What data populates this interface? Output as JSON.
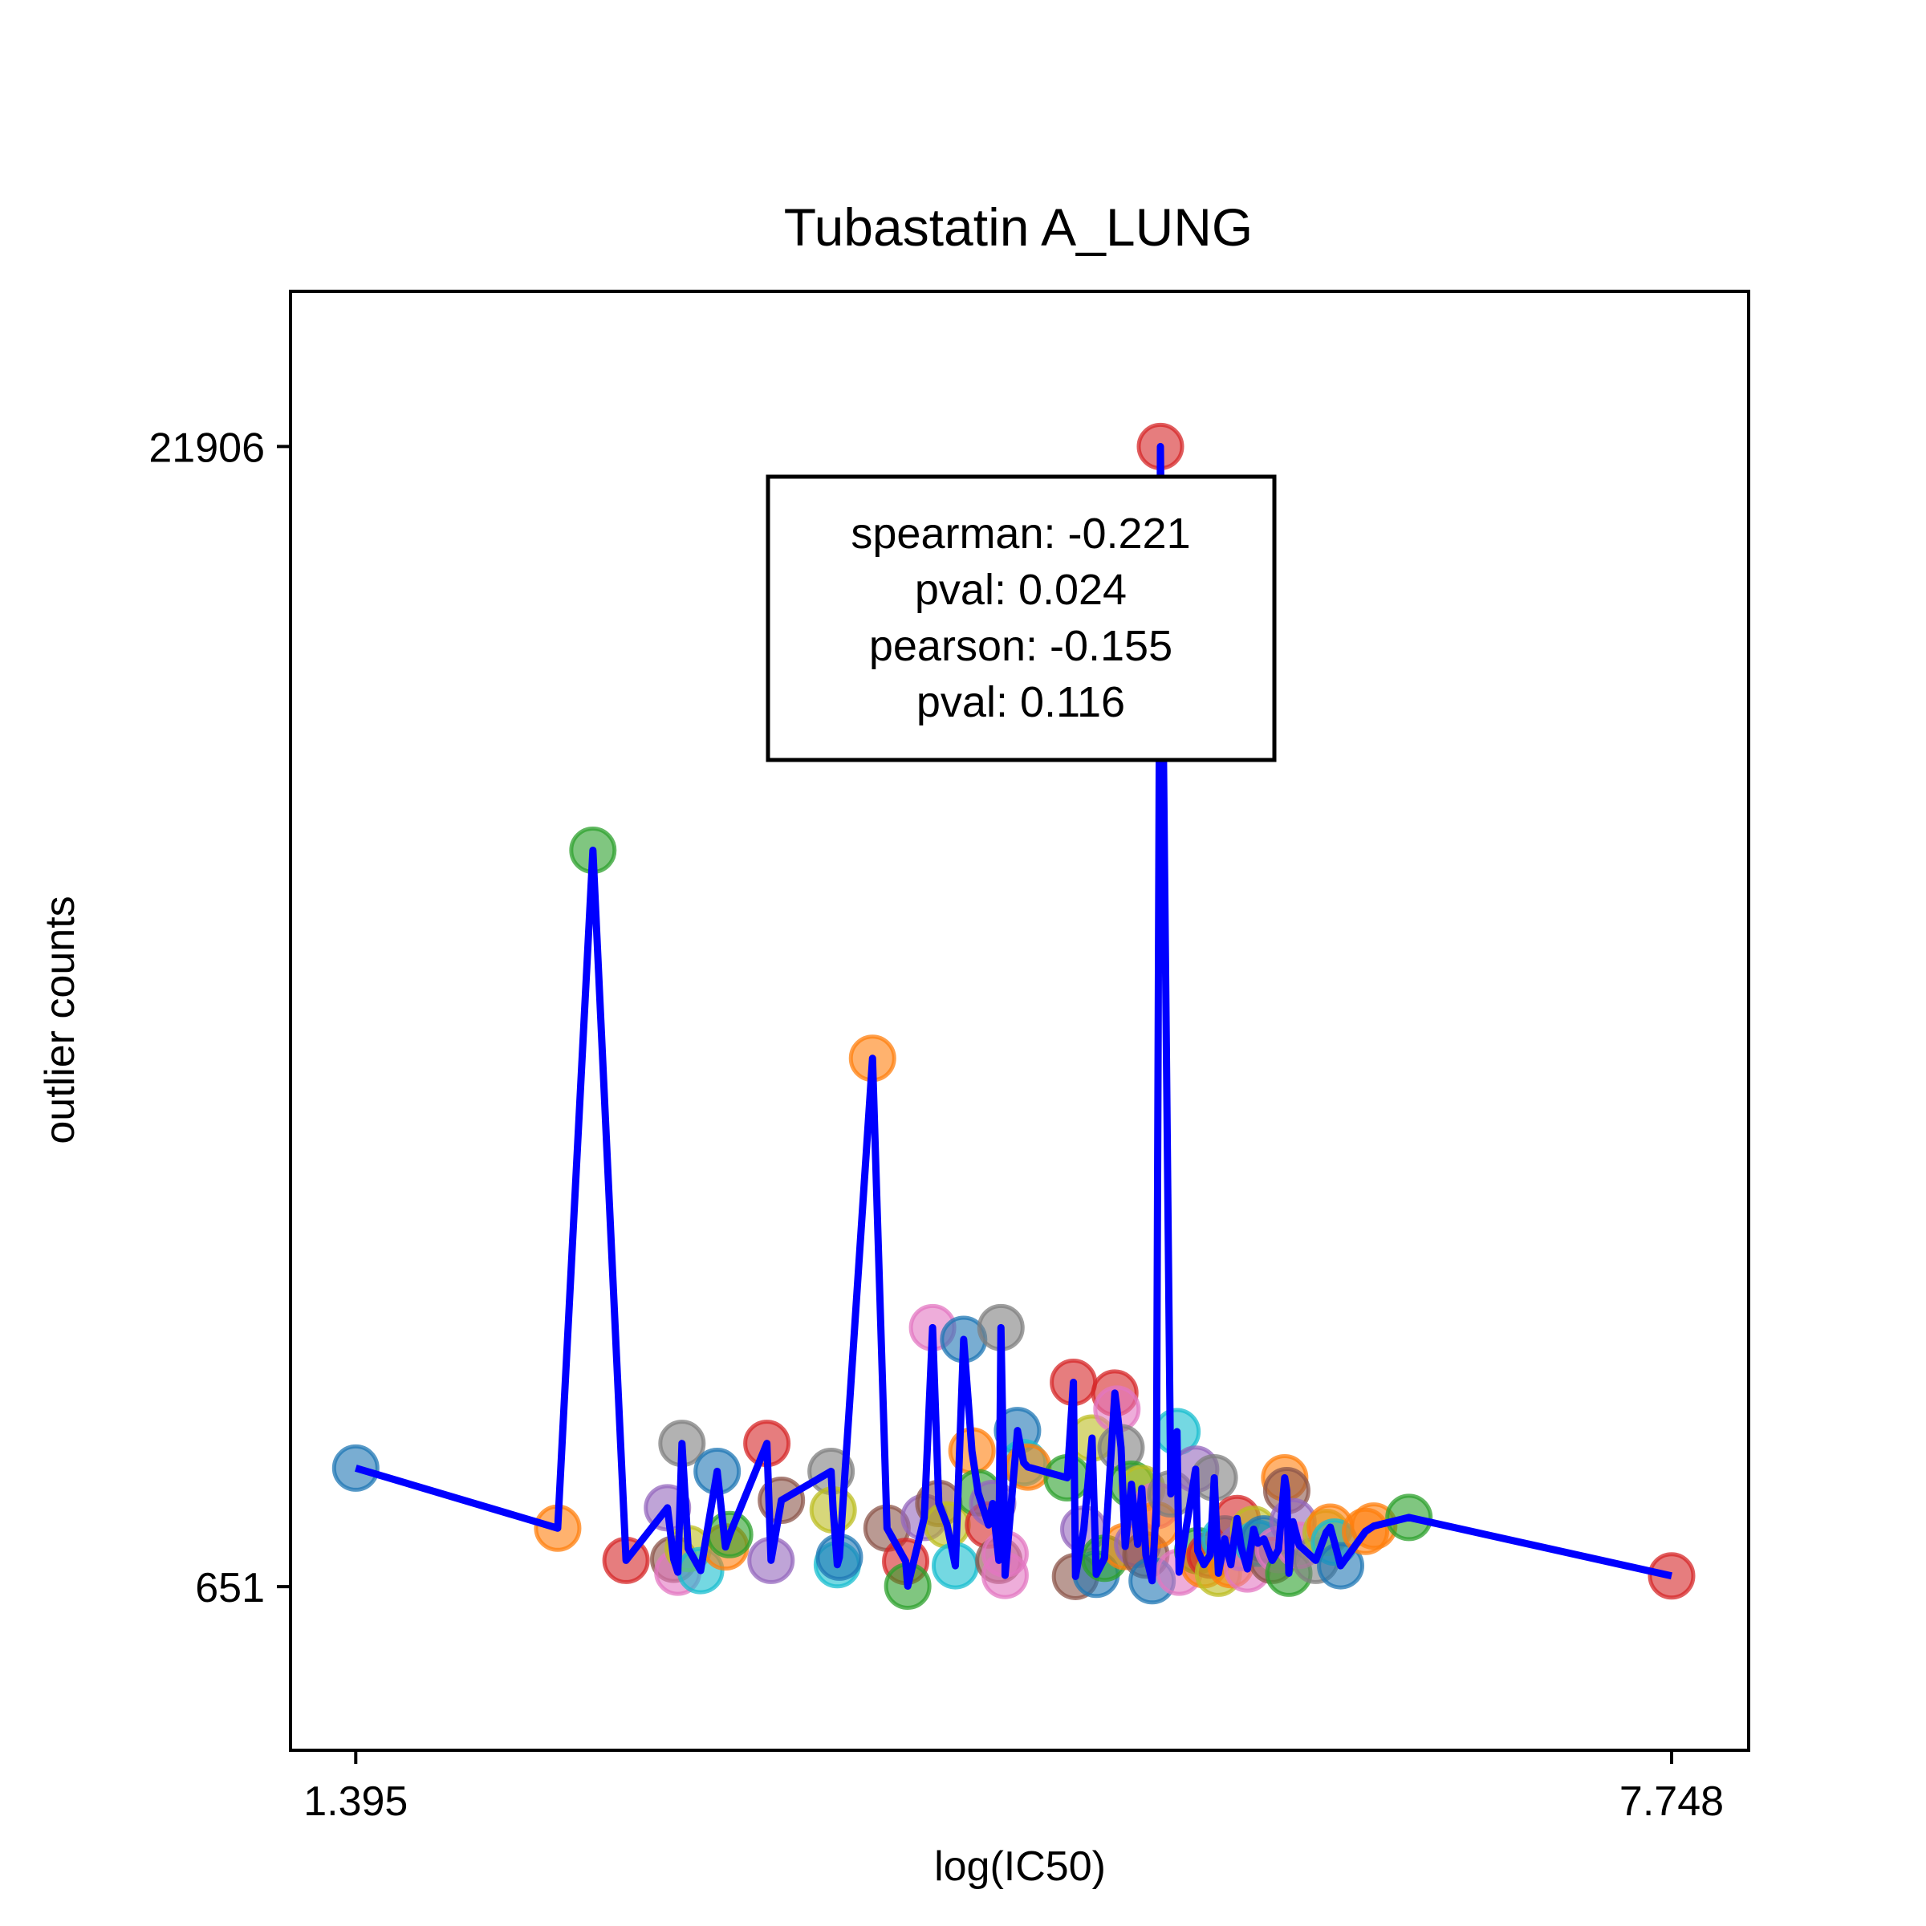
{
  "chart_data": {
    "type": "scatter",
    "title": "Tubastatin A_LUNG",
    "xlabel": "log(IC50)",
    "ylabel": "outlier counts",
    "xlim": [
      1.08,
      8.12
    ],
    "ylim": [
      -2400,
      24800
    ],
    "x_ticks": [
      1.395,
      7.748
    ],
    "x_tick_labels": [
      "1.395",
      "7.748"
    ],
    "y_ticks": [
      651,
      21906
    ],
    "y_tick_labels": [
      "651",
      "21906"
    ],
    "grid": false,
    "legend": "none",
    "line_color": "#0000ff",
    "marker_alpha": 0.6,
    "stats_box": {
      "lines": [
        "spearman: -0.221",
        "pval: 0.024",
        "pearson: -0.155",
        "pval: 0.116"
      ],
      "placement": "upper-center"
    },
    "points": [
      {
        "x": 1.395,
        "y": 2860,
        "color": "#1f77b4"
      },
      {
        "x": 2.37,
        "y": 1740,
        "color": "#ff7f0e"
      },
      {
        "x": 2.54,
        "y": 14380,
        "color": "#2ca02c"
      },
      {
        "x": 2.7,
        "y": 1140,
        "color": "#d62728"
      },
      {
        "x": 2.9,
        "y": 2120,
        "color": "#9467bd"
      },
      {
        "x": 2.93,
        "y": 1160,
        "color": "#8c564b"
      },
      {
        "x": 2.95,
        "y": 920,
        "color": "#e377c2"
      },
      {
        "x": 2.97,
        "y": 3320,
        "color": "#7f7f7f"
      },
      {
        "x": 3.0,
        "y": 1360,
        "color": "#bcbd22"
      },
      {
        "x": 3.06,
        "y": 950,
        "color": "#17becf"
      },
      {
        "x": 3.14,
        "y": 2800,
        "color": "#1f77b4"
      },
      {
        "x": 3.18,
        "y": 1390,
        "color": "#ff7f0e"
      },
      {
        "x": 3.2,
        "y": 1620,
        "color": "#2ca02c"
      },
      {
        "x": 3.38,
        "y": 3320,
        "color": "#d62728"
      },
      {
        "x": 3.4,
        "y": 1140,
        "color": "#9467bd"
      },
      {
        "x": 3.45,
        "y": 2260,
        "color": "#8c564b"
      },
      {
        "x": 3.69,
        "y": 2800,
        "color": "#7f7f7f"
      },
      {
        "x": 3.7,
        "y": 2080,
        "color": "#bcbd22"
      },
      {
        "x": 3.72,
        "y": 1060,
        "color": "#17becf"
      },
      {
        "x": 3.73,
        "y": 1200,
        "color": "#1f77b4"
      },
      {
        "x": 3.89,
        "y": 10500,
        "color": "#ff7f0e"
      },
      {
        "x": 3.96,
        "y": 1740,
        "color": "#8c564b"
      },
      {
        "x": 4.05,
        "y": 1120,
        "color": "#d62728"
      },
      {
        "x": 4.06,
        "y": 660,
        "color": "#2ca02c"
      },
      {
        "x": 4.14,
        "y": 1940,
        "color": "#9467bd"
      },
      {
        "x": 4.18,
        "y": 5480,
        "color": "#e377c2"
      },
      {
        "x": 4.21,
        "y": 2200,
        "color": "#8c564b"
      },
      {
        "x": 4.25,
        "y": 1800,
        "color": "#bcbd22"
      },
      {
        "x": 4.29,
        "y": 1040,
        "color": "#17becf"
      },
      {
        "x": 4.33,
        "y": 5260,
        "color": "#1f77b4"
      },
      {
        "x": 4.37,
        "y": 3180,
        "color": "#ff7f0e"
      },
      {
        "x": 4.4,
        "y": 2400,
        "color": "#2ca02c"
      },
      {
        "x": 4.45,
        "y": 1800,
        "color": "#d62728"
      },
      {
        "x": 4.47,
        "y": 2200,
        "color": "#9467bd"
      },
      {
        "x": 4.5,
        "y": 1140,
        "color": "#8c564b"
      },
      {
        "x": 4.51,
        "y": 5480,
        "color": "#7f7f7f"
      },
      {
        "x": 4.53,
        "y": 1260,
        "color": "#e377c2"
      },
      {
        "x": 4.53,
        "y": 860,
        "color": "#e377c2"
      },
      {
        "x": 4.59,
        "y": 3560,
        "color": "#1f77b4"
      },
      {
        "x": 4.62,
        "y": 2960,
        "color": "#17becf"
      },
      {
        "x": 4.64,
        "y": 2880,
        "color": "#ff7f0e"
      },
      {
        "x": 4.83,
        "y": 2680,
        "color": "#2ca02c"
      },
      {
        "x": 4.86,
        "y": 4460,
        "color": "#d62728"
      },
      {
        "x": 4.87,
        "y": 840,
        "color": "#8c564b"
      },
      {
        "x": 4.91,
        "y": 1720,
        "color": "#9467bd"
      },
      {
        "x": 4.95,
        "y": 3420,
        "color": "#bcbd22"
      },
      {
        "x": 4.97,
        "y": 880,
        "color": "#1f77b4"
      },
      {
        "x": 5.01,
        "y": 1180,
        "color": "#2ca02c"
      },
      {
        "x": 5.06,
        "y": 4260,
        "color": "#d62728"
      },
      {
        "x": 5.07,
        "y": 3960,
        "color": "#e377c2"
      },
      {
        "x": 5.09,
        "y": 3240,
        "color": "#7f7f7f"
      },
      {
        "x": 5.11,
        "y": 1400,
        "color": "#ff7f0e"
      },
      {
        "x": 5.14,
        "y": 2560,
        "color": "#2ca02c"
      },
      {
        "x": 5.17,
        "y": 1440,
        "color": "#9467bd"
      },
      {
        "x": 5.19,
        "y": 2480,
        "color": "#bcbd22"
      },
      {
        "x": 5.21,
        "y": 1240,
        "color": "#8c564b"
      },
      {
        "x": 5.24,
        "y": 760,
        "color": "#1f77b4"
      },
      {
        "x": 5.26,
        "y": 2160,
        "color": "#e377c2"
      },
      {
        "x": 5.26,
        "y": 1800,
        "color": "#ff7f0e"
      },
      {
        "x": 5.28,
        "y": 21906,
        "color": "#d62728"
      },
      {
        "x": 5.33,
        "y": 2380,
        "color": "#7f7f7f"
      },
      {
        "x": 5.36,
        "y": 3540,
        "color": "#17becf"
      },
      {
        "x": 5.37,
        "y": 920,
        "color": "#e377c2"
      },
      {
        "x": 5.45,
        "y": 2840,
        "color": "#9467bd"
      },
      {
        "x": 5.46,
        "y": 1320,
        "color": "#2ca02c"
      },
      {
        "x": 5.49,
        "y": 1060,
        "color": "#ff7f0e"
      },
      {
        "x": 5.52,
        "y": 1240,
        "color": "#d62728"
      },
      {
        "x": 5.54,
        "y": 2680,
        "color": "#7f7f7f"
      },
      {
        "x": 5.56,
        "y": 900,
        "color": "#bcbd22"
      },
      {
        "x": 5.59,
        "y": 1540,
        "color": "#17becf"
      },
      {
        "x": 5.62,
        "y": 1060,
        "color": "#ff7f0e"
      },
      {
        "x": 5.65,
        "y": 1920,
        "color": "#d62728"
      },
      {
        "x": 5.67,
        "y": 1380,
        "color": "#9467bd"
      },
      {
        "x": 5.7,
        "y": 980,
        "color": "#e377c2"
      },
      {
        "x": 5.73,
        "y": 1720,
        "color": "#bcbd22"
      },
      {
        "x": 5.75,
        "y": 1460,
        "color": "#17becf"
      },
      {
        "x": 5.78,
        "y": 1540,
        "color": "#1f77b4"
      },
      {
        "x": 5.82,
        "y": 1140,
        "color": "#8c564b"
      },
      {
        "x": 5.85,
        "y": 1340,
        "color": "#e377c2"
      },
      {
        "x": 5.88,
        "y": 2680,
        "color": "#ff7f0e"
      },
      {
        "x": 5.89,
        "y": 2440,
        "color": "#8c564b"
      },
      {
        "x": 5.9,
        "y": 900,
        "color": "#2ca02c"
      },
      {
        "x": 5.92,
        "y": 1860,
        "color": "#9467bd"
      },
      {
        "x": 5.95,
        "y": 1420,
        "color": "#e377c2"
      },
      {
        "x": 6.03,
        "y": 1140,
        "color": "#7f7f7f"
      },
      {
        "x": 6.08,
        "y": 1660,
        "color": "#bcbd22"
      },
      {
        "x": 6.1,
        "y": 1760,
        "color": "#ff7f0e"
      },
      {
        "x": 6.12,
        "y": 1480,
        "color": "#17becf"
      },
      {
        "x": 6.15,
        "y": 1040,
        "color": "#1f77b4"
      },
      {
        "x": 6.27,
        "y": 1680,
        "color": "#ff7f0e"
      },
      {
        "x": 6.31,
        "y": 1780,
        "color": "#ff7f0e"
      },
      {
        "x": 6.48,
        "y": 1940,
        "color": "#2ca02c"
      },
      {
        "x": 7.748,
        "y": 851,
        "color": "#d62728"
      }
    ]
  }
}
